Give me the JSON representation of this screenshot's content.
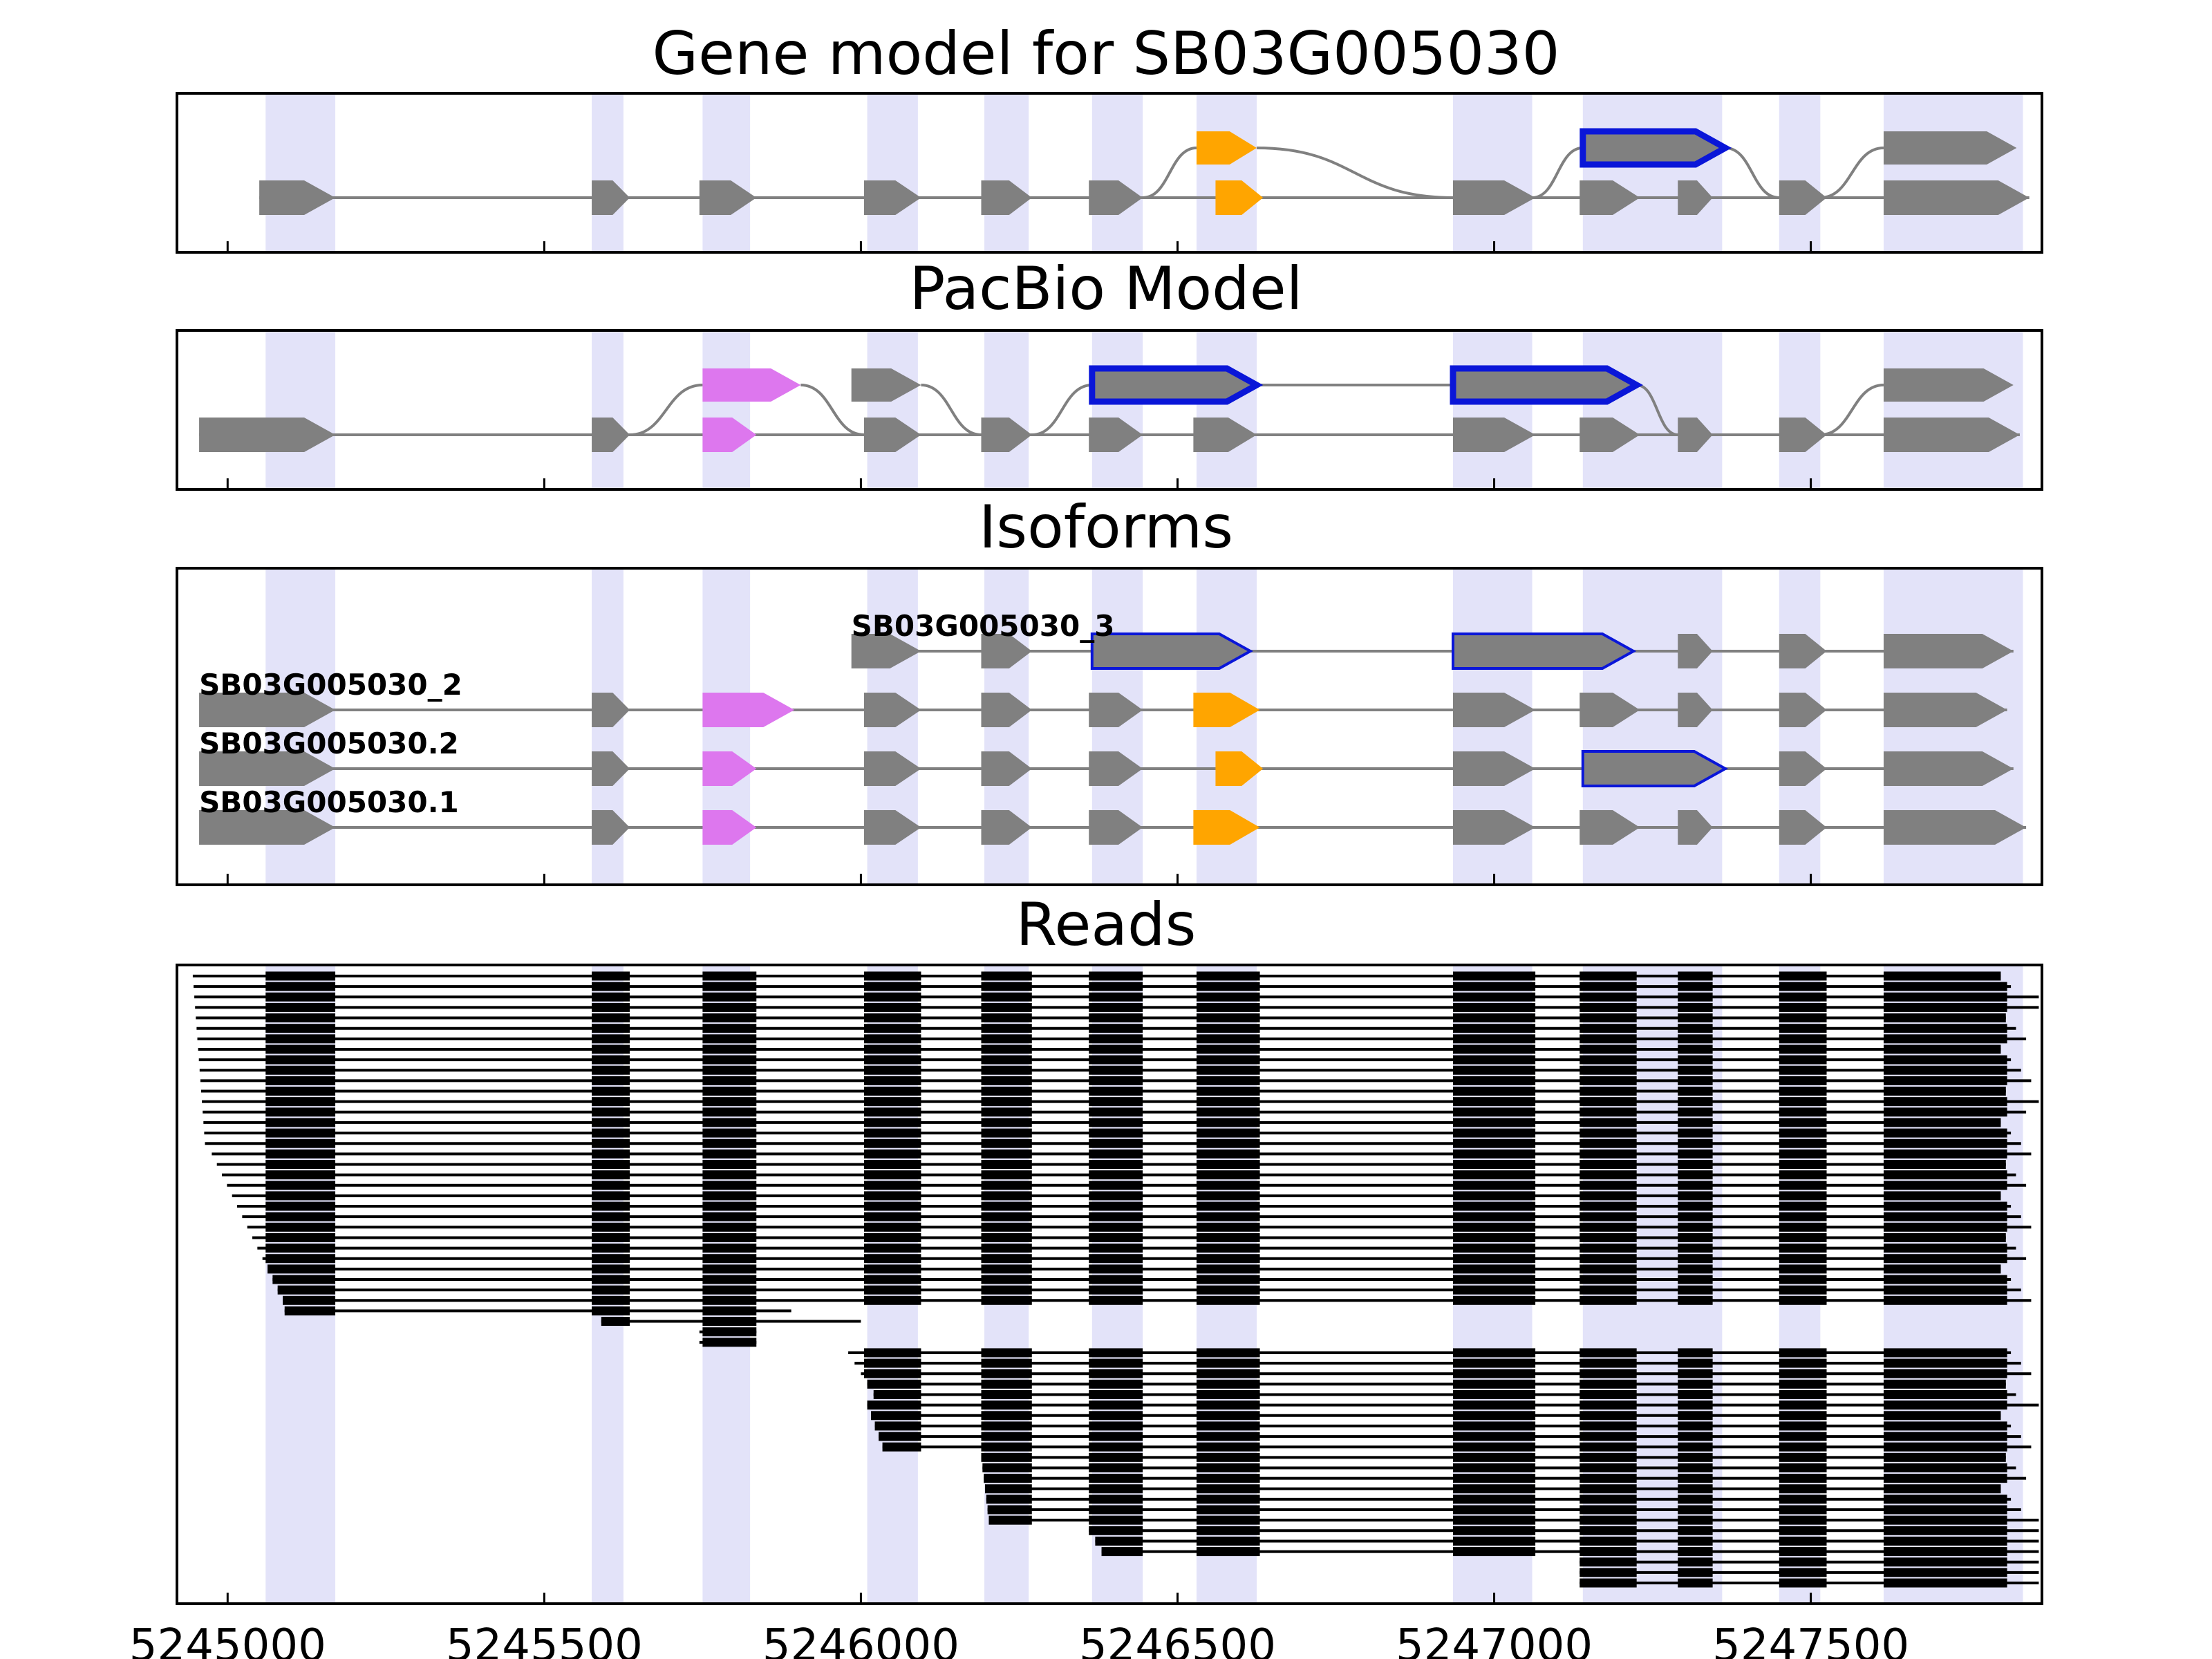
{
  "figure": {
    "title": "Gene model for SB03G005030"
  },
  "colors": {
    "exon": "#808080",
    "intron": "#808080",
    "highlight": "#e3e3f9",
    "orange": "#ffa500",
    "violet": "#dd77ee",
    "blue": "#0a16d8",
    "read": "#000000",
    "axes": "#000000"
  },
  "chart_data": [
    {
      "type": "gene-model",
      "title": "Gene model for SB03G005030",
      "xlim": [
        5244920,
        5247865
      ],
      "xticks": [
        5245000,
        5245500,
        5246000,
        5246500,
        5247000,
        5247500
      ],
      "xtick_labels": [
        "5245000",
        "5245500",
        "5246000",
        "5246500",
        "5247000",
        "5247500"
      ],
      "highlight_regions": [
        [
          5245060,
          5245170
        ],
        [
          5245575,
          5245625
        ],
        [
          5245750,
          5245825
        ],
        [
          5246010,
          5246090
        ],
        [
          5246195,
          5246265
        ],
        [
          5246365,
          5246445
        ],
        [
          5246530,
          5246625
        ],
        [
          5246935,
          5247060
        ],
        [
          5247140,
          5247360
        ],
        [
          5247450,
          5247515
        ],
        [
          5247615,
          5247835
        ]
      ]
    },
    {
      "type": "gene-model",
      "title": "PacBio Model"
    },
    {
      "type": "isoforms",
      "title": "Isoforms",
      "labels": [
        "SB03G005030_3",
        "SB03G005030_2",
        "SB03G005030.2",
        "SB03G005030.1"
      ]
    },
    {
      "type": "reads",
      "title": "Reads",
      "read_count": 59
    }
  ],
  "panels": {
    "gene": {
      "title": "Gene model for SB03G005030",
      "branch_top": {
        "exons": [
          [
            5246530,
            5246625,
            "orange",
            false
          ],
          [
            5247140,
            5247365,
            "blue",
            true
          ],
          [
            5247615,
            5247825,
            "gray",
            false
          ]
        ],
        "curves": [
          [
            5246445,
            5246530
          ],
          [
            5246625,
            5246935
          ],
          [
            5247060,
            5247140
          ],
          [
            5247365,
            5247450
          ],
          [
            5247515,
            5247615
          ]
        ]
      },
      "main": {
        "exons": [
          [
            5245050,
            5245170
          ],
          [
            5245575,
            5245635
          ],
          [
            5245745,
            5245835
          ],
          [
            5246005,
            5246095
          ],
          [
            5246190,
            5246270
          ],
          [
            5246360,
            5246445
          ],
          [
            5246560,
            5246635,
            "orange"
          ],
          [
            5246935,
            5247065
          ],
          [
            5247135,
            5247230
          ],
          [
            5247290,
            5247345
          ],
          [
            5247450,
            5247525
          ],
          [
            5247615,
            5247845
          ]
        ],
        "gaps": []
      }
    },
    "pacbio": {
      "title": "PacBio Model",
      "branch_top": {
        "exons": [
          [
            5245750,
            5245905,
            "violet",
            false
          ],
          [
            5245985,
            5246095,
            "gray",
            false
          ],
          [
            5246365,
            5246625,
            "blue",
            true
          ],
          [
            5246935,
            5247225,
            "blue",
            true
          ],
          [
            5247615,
            5247820,
            "gray",
            false
          ]
        ],
        "curves": [
          [
            5245635,
            5245750
          ],
          [
            5245905,
            5246005
          ],
          [
            5246095,
            5246190
          ],
          [
            5246270,
            5246365
          ],
          [
            5247225,
            5247290
          ],
          [
            5247515,
            5247615
          ]
        ]
      },
      "main": {
        "exons": [
          [
            5244955,
            5245170
          ],
          [
            5245575,
            5245635
          ],
          [
            5245750,
            5245835,
            "violet"
          ],
          [
            5246005,
            5246095
          ],
          [
            5246190,
            5246270
          ],
          [
            5246360,
            5246445
          ],
          [
            5246525,
            5246625
          ],
          [
            5246935,
            5247065
          ],
          [
            5247135,
            5247230
          ],
          [
            5247290,
            5247345
          ],
          [
            5247450,
            5247525
          ],
          [
            5247615,
            5247830
          ]
        ],
        "gaps": []
      }
    },
    "isoforms": {
      "title": "Isoforms",
      "rows": [
        {
          "label": "SB03G005030_3",
          "label_x": 5245985,
          "exons": [
            [
              5245985,
              5246095
            ],
            [
              5246190,
              5246270
            ],
            [
              5246365,
              5246615,
              "blue"
            ],
            [
              5246935,
              5247220,
              "blue"
            ],
            [
              5247290,
              5247345
            ],
            [
              5247450,
              5247525
            ],
            [
              5247615,
              5247820
            ]
          ],
          "line": [
            5246000,
            5247820
          ]
        },
        {
          "label": "SB03G005030_2",
          "label_x": 5244955,
          "exons": [
            [
              5244955,
              5245170
            ],
            [
              5245575,
              5245635
            ],
            [
              5245750,
              5245895,
              "violet"
            ],
            [
              5246005,
              5246095
            ],
            [
              5246190,
              5246270
            ],
            [
              5246360,
              5246445
            ],
            [
              5246525,
              5246630,
              "orange"
            ],
            [
              5246935,
              5247065
            ],
            [
              5247135,
              5247230
            ],
            [
              5247290,
              5247345
            ],
            [
              5247450,
              5247525
            ],
            [
              5247615,
              5247810
            ]
          ],
          "line": [
            5245000,
            5247810
          ]
        },
        {
          "label": "SB03G005030.2",
          "label_x": 5244955,
          "exons": [
            [
              5244955,
              5245170
            ],
            [
              5245575,
              5245635
            ],
            [
              5245750,
              5245835,
              "violet"
            ],
            [
              5246005,
              5246095
            ],
            [
              5246190,
              5246270
            ],
            [
              5246360,
              5246445
            ],
            [
              5246560,
              5246635,
              "orange"
            ],
            [
              5246935,
              5247065
            ],
            [
              5247140,
              5247365,
              "blue"
            ],
            [
              5247450,
              5247525
            ],
            [
              5247615,
              5247820
            ]
          ],
          "line": [
            5245000,
            5247820
          ]
        },
        {
          "label": "SB03G005030.1",
          "label_x": 5244955,
          "exons": [
            [
              5244955,
              5245170
            ],
            [
              5245575,
              5245635
            ],
            [
              5245750,
              5245835,
              "violet"
            ],
            [
              5246005,
              5246095
            ],
            [
              5246190,
              5246270
            ],
            [
              5246360,
              5246445
            ],
            [
              5246525,
              5246630,
              "orange"
            ],
            [
              5246935,
              5247065
            ],
            [
              5247135,
              5247230
            ],
            [
              5247290,
              5247345
            ],
            [
              5247450,
              5247525
            ],
            [
              5247615,
              5247840
            ]
          ],
          "line": [
            5245000,
            5247840
          ]
        }
      ]
    },
    "reads": {
      "title": "Reads"
    }
  }
}
